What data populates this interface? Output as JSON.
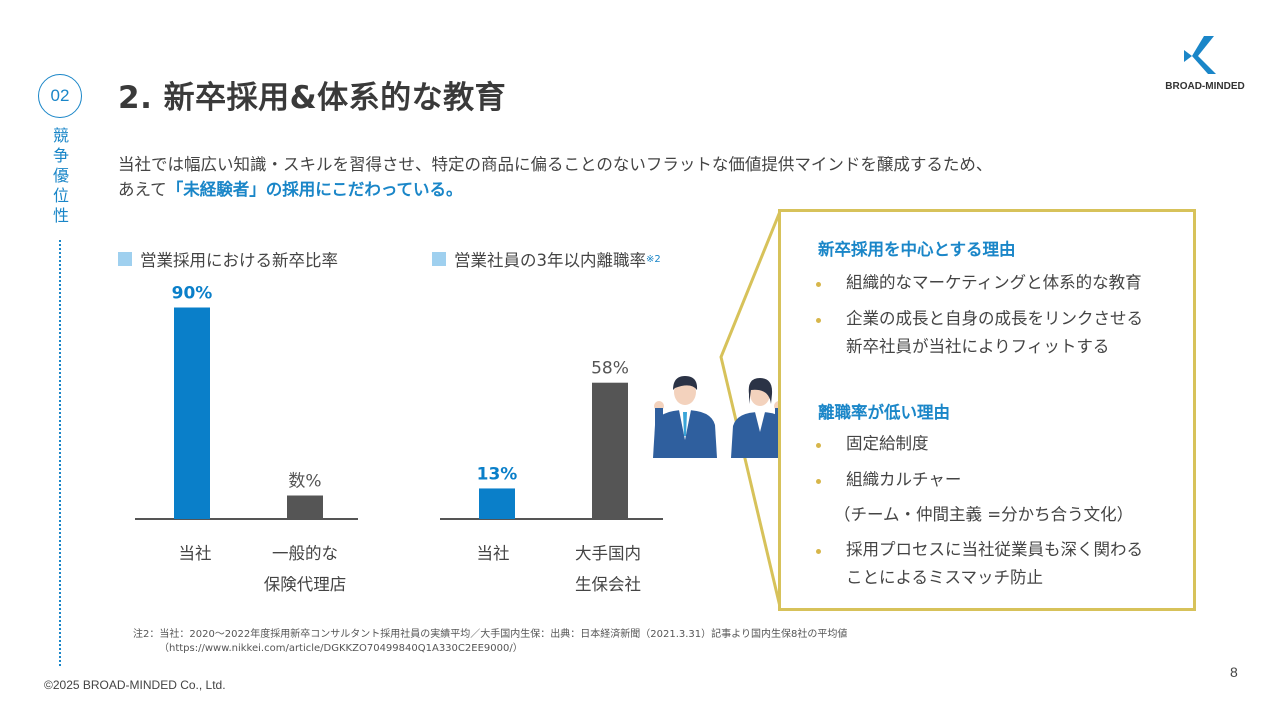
{
  "section": {
    "number": "02",
    "label": [
      "競",
      "争",
      "優",
      "位",
      "性"
    ]
  },
  "title": "2. 新卒採用&体系的な教育",
  "logo": {
    "text": "BROAD-MINDED"
  },
  "intro": {
    "line1": "当社では幅広い知識・スキルを習得させ、特定の商品に偏ることのないフラットな価値提供マインドを醸成するため、",
    "line2_prefix": "あえて",
    "line2_highlight": "「未経験者」の採用にこだわっている。"
  },
  "chart_data": [
    {
      "type": "bar",
      "title": "営業採用における新卒比率",
      "categories": [
        "当社",
        "一般的な\n保険代理店"
      ],
      "value_labels": [
        "90%",
        "数%"
      ],
      "values": [
        90,
        10
      ],
      "colors": [
        "#0a7fc9",
        "#555555"
      ]
    },
    {
      "type": "bar",
      "title": "営業社員の3年以内離職率",
      "title_note": "※2",
      "categories": [
        "当社",
        "大手国内\n生保会社"
      ],
      "value_labels": [
        "13%",
        "58%"
      ],
      "values": [
        13,
        58
      ],
      "colors": [
        "#0a7fc9",
        "#555555"
      ]
    }
  ],
  "cat_labels": {
    "c1a": "当社",
    "c1b_1": "一般的な",
    "c1b_2": "保険代理店",
    "c2a": "当社",
    "c2b_1": "大手国内",
    "c2b_2": "生保会社"
  },
  "reasons": {
    "head1": "新卒採用を中心とする理由",
    "r1": "組織的なマーケティングと体系的な教育",
    "r2_1": "企業の成長と自身の成長をリンクさせる",
    "r2_2": "新卒社員が当社によりフィットする",
    "head2": "離職率が低い理由",
    "r3": "固定給制度",
    "r4": "組織カルチャー",
    "r4_sub": "（チーム・仲間主義 =分かち合う文化）",
    "r5_1": "採用プロセスに当社従業員も深く関わる",
    "r5_2": "ことによるミスマッチ防止"
  },
  "footnote": {
    "line1": "注2：当社：2020～2022年度採用新卒コンサルタント採用社員の実績平均／大手国内生保：出典：日本経済新聞（2021.3.31）記事より国内生保8社の平均値",
    "line2": "（https://www.nikkei.com/article/DGKKZO70499840Q1A330C2EE9000/）"
  },
  "copyright": "©2025 BROAD-MINDED Co., Ltd.",
  "page_number": "8",
  "colors": {
    "accent": "#1a86c8",
    "bar_primary": "#0a7fc9",
    "bar_secondary": "#555555",
    "box_border": "#d7c25a"
  },
  "icons": {
    "people": "business-people-cheering-illustration"
  }
}
